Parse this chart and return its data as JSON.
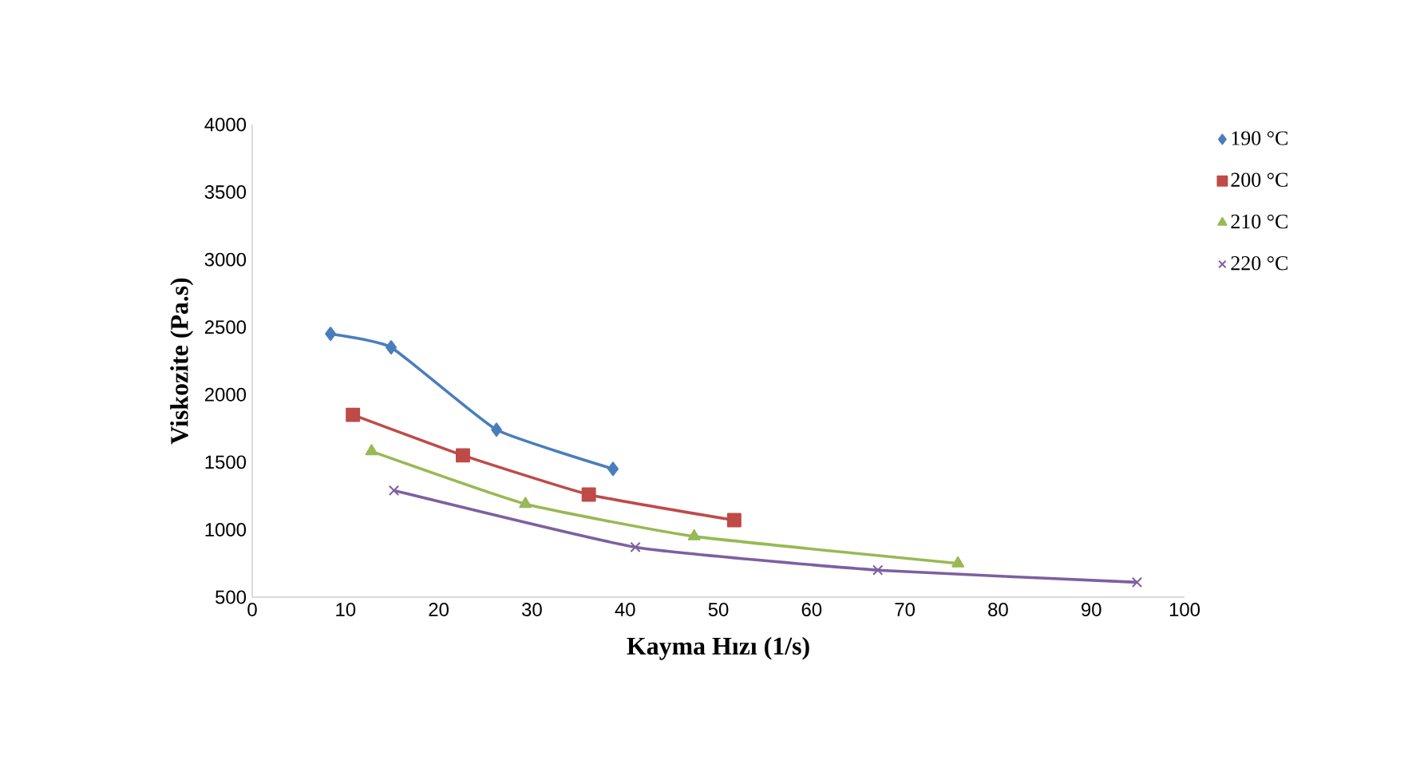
{
  "chart_data": {
    "type": "line",
    "xlabel": "Kayma Hızı (1/s)",
    "ylabel": "Viskozite  (Pa.s)",
    "xlim": [
      0,
      100
    ],
    "xticks": [
      0,
      10,
      20,
      30,
      40,
      50,
      60,
      70,
      80,
      90,
      100
    ],
    "ylim": [
      500,
      4000
    ],
    "yticks": [
      500,
      1000,
      1500,
      2000,
      2500,
      3000,
      3500,
      4000
    ],
    "grid": false,
    "legend": "right",
    "series": [
      {
        "name": "190 °C",
        "color": "#4a7ebb",
        "marker": "diamond",
        "x": [
          8.4,
          14.9,
          26.2,
          38.7
        ],
        "values": [
          2450,
          2350,
          1740,
          1450
        ]
      },
      {
        "name": "200 °C",
        "color": "#be4b48",
        "marker": "square",
        "x": [
          10.8,
          22.6,
          36.1,
          51.7
        ],
        "values": [
          1850,
          1550,
          1260,
          1070
        ]
      },
      {
        "name": "210 °C",
        "color": "#98b954",
        "marker": "triangle",
        "x": [
          12.8,
          29.3,
          47.4,
          75.7
        ],
        "values": [
          1580,
          1190,
          950,
          750
        ]
      },
      {
        "name": "220 °C",
        "color": "#7d60a0",
        "marker": "cross",
        "x": [
          15.2,
          41.1,
          67.1,
          94.9
        ],
        "values": [
          1290,
          870,
          700,
          610
        ]
      }
    ]
  }
}
